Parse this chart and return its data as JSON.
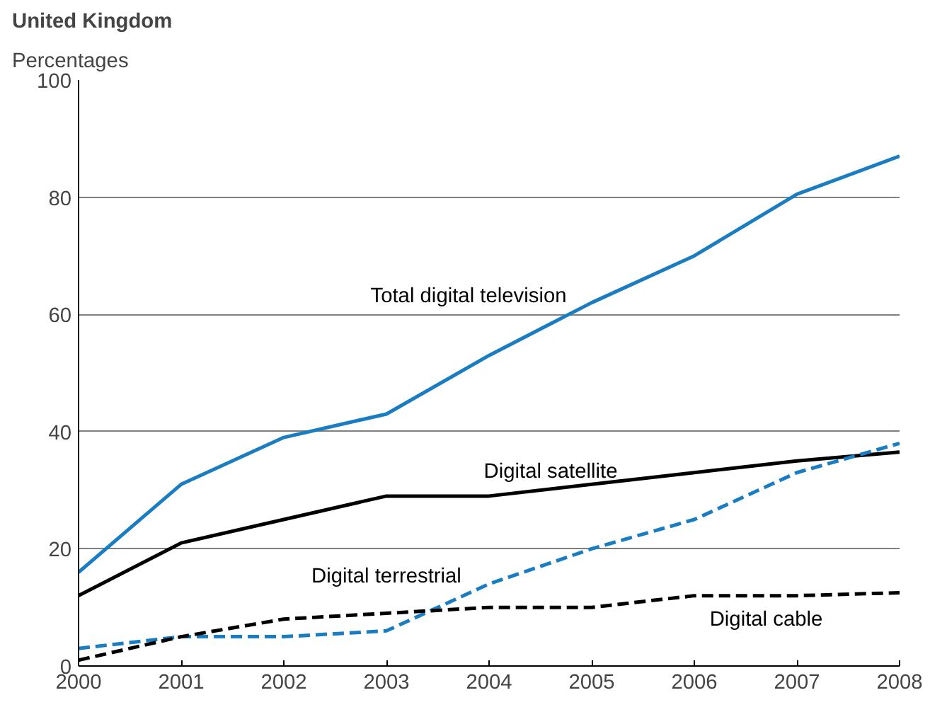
{
  "chart_data": {
    "type": "line",
    "title": "United Kingdom",
    "subtitle": "Percentages",
    "x": [
      2000,
      2001,
      2002,
      2003,
      2004,
      2005,
      2006,
      2007,
      2008
    ],
    "series": [
      {
        "name": "Total digital television",
        "color": "#1a7cc1",
        "line_style": "solid",
        "values": [
          16,
          31,
          39,
          43,
          53,
          62,
          70,
          80.5,
          87
        ]
      },
      {
        "name": "Digital satellite",
        "color": "#000000",
        "line_style": "solid",
        "values": [
          12,
          21,
          25,
          29,
          29,
          31,
          33,
          35,
          36.5
        ]
      },
      {
        "name": "Digital terrestrial",
        "color": "#1a7cc1",
        "line_style": "dashed",
        "values": [
          3,
          5,
          5,
          6,
          14,
          20,
          25,
          33,
          38
        ]
      },
      {
        "name": "Digital cable",
        "color": "#000000",
        "line_style": "dashed",
        "values": [
          1,
          5,
          8,
          9,
          10,
          10,
          12,
          12,
          12.5
        ]
      }
    ],
    "xlim": [
      2000,
      2008
    ],
    "xticks": [
      2000,
      2001,
      2002,
      2003,
      2004,
      2005,
      2006,
      2007,
      2008
    ],
    "ylim": [
      0,
      100
    ],
    "yticks": [
      0,
      20,
      40,
      60,
      80,
      100
    ],
    "grid": "y",
    "marker": "none"
  }
}
